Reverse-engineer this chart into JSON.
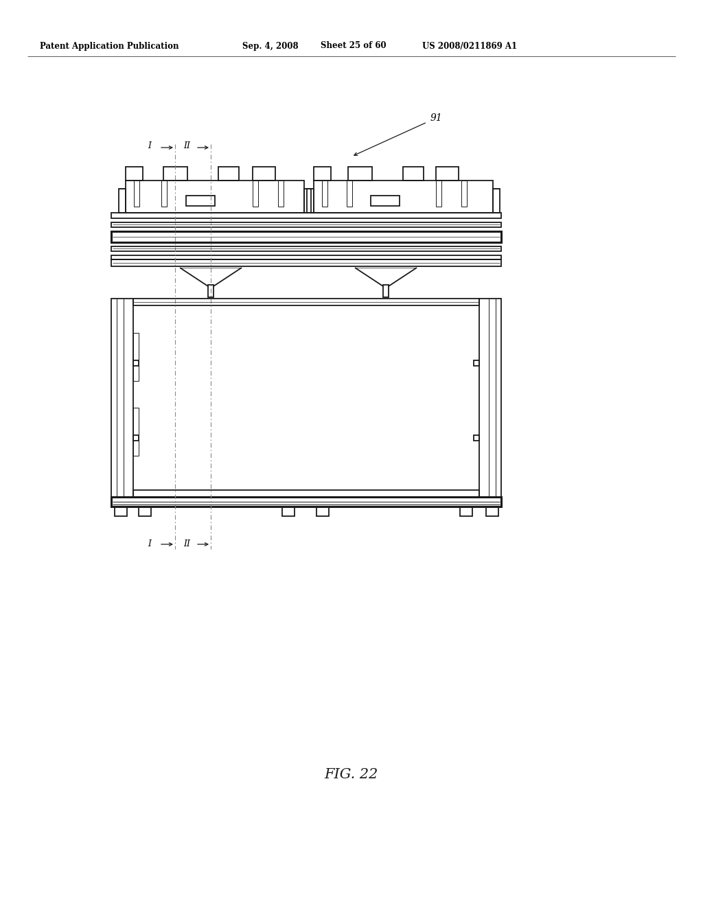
{
  "bg_color": "#ffffff",
  "header_text": "Patent Application Publication",
  "header_date": "Sep. 4, 2008",
  "header_sheet": "Sheet 25 of 60",
  "header_patent": "US 2008/0211869 A1",
  "fig_label": "FIG. 22",
  "ref_number": "91",
  "line_color": "#1a1a1a",
  "dashdot_color": "#666666",
  "lw_main": 1.3,
  "lw_thick": 2.2,
  "lw_thin": 0.7,
  "lw_hair": 0.5
}
